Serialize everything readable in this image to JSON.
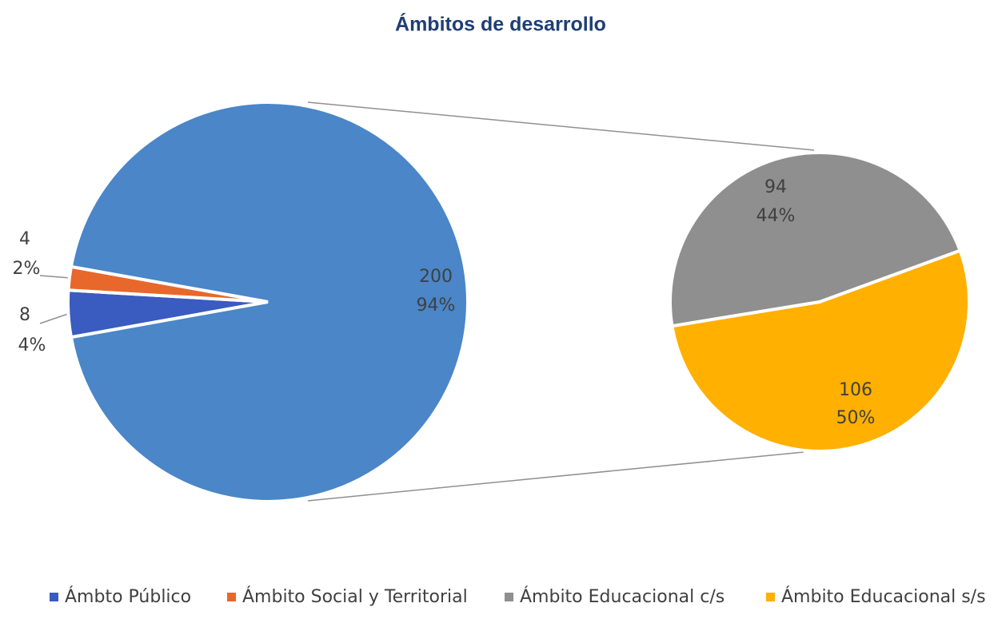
{
  "chart_data": {
    "type": "pie",
    "title": "Ámbitos de desarrollo",
    "legend": "bottom",
    "pies": [
      {
        "slices": [
          {
            "name": "Ámbto Público",
            "value": 8,
            "percent_label": "4%",
            "color": "#3a5bbf"
          },
          {
            "name": "Ámbito Social y Territorial",
            "value": 4,
            "percent_label": "2%",
            "color": "#e8672a"
          },
          {
            "value": 200,
            "percent_label": "94%",
            "color": "#4a86c8"
          }
        ]
      },
      {
        "slices": [
          {
            "name": "Ámbito Educacional c/s",
            "value": 94,
            "percent_label": "44%",
            "color": "#8f8f8f"
          },
          {
            "name": "Ámbito Educacional s/s",
            "value": 106,
            "percent_label": "50%",
            "color": "#ffb000"
          }
        ]
      }
    ]
  }
}
